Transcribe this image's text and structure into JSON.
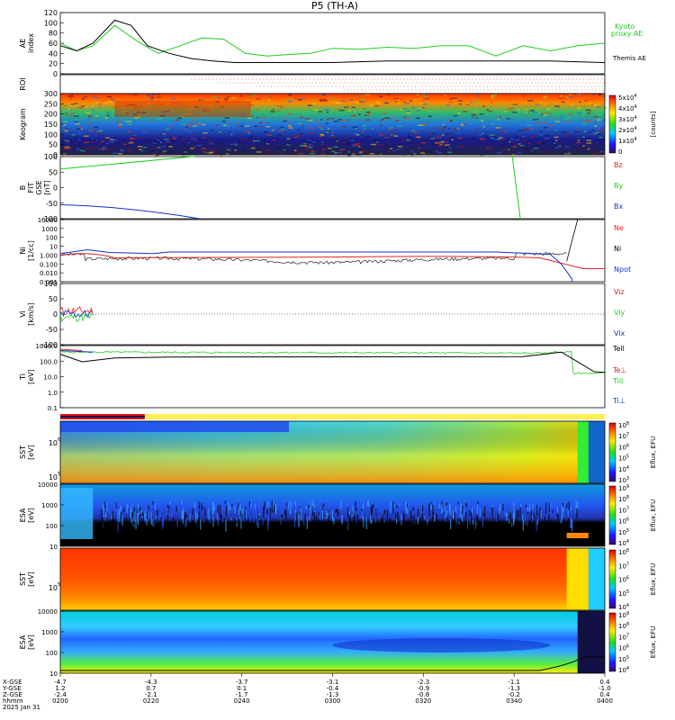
{
  "title": "P5 (TH-A)",
  "colors": {
    "green": "#22cc22",
    "red": "#dd2222",
    "blue": "#1133cc",
    "black": "#000000"
  },
  "chart_data": [
    {
      "id": "ae",
      "type": "line",
      "ylabel": "AE index",
      "ylim": [
        0,
        120
      ],
      "yticks": [
        "0",
        "20",
        "40",
        "60",
        "80",
        "100",
        "120"
      ],
      "legend": [
        "Kyoto",
        "proxy AE",
        "Themis AE"
      ],
      "series": [
        {
          "name": "Kyoto proxy AE",
          "color": "#22cc22",
          "x": [
            0,
            0.03,
            0.06,
            0.1,
            0.14,
            0.18,
            0.22,
            0.26,
            0.3,
            0.34,
            0.38,
            0.42,
            0.46,
            0.5,
            0.55,
            0.6,
            0.65,
            0.7,
            0.75,
            0.8,
            0.85,
            0.9,
            0.95,
            1.0
          ],
          "values": [
            60,
            45,
            55,
            95,
            65,
            40,
            55,
            70,
            68,
            40,
            35,
            38,
            40,
            50,
            48,
            52,
            50,
            55,
            55,
            35,
            55,
            45,
            55,
            60
          ]
        },
        {
          "name": "Themis AE",
          "color": "#000000",
          "x": [
            0,
            0.03,
            0.06,
            0.1,
            0.13,
            0.16,
            0.2,
            0.24,
            0.28,
            0.32,
            0.4,
            0.5,
            0.6,
            0.7,
            0.8,
            0.9,
            1.0
          ],
          "values": [
            55,
            45,
            60,
            105,
            95,
            55,
            40,
            30,
            25,
            22,
            22,
            22,
            25,
            25,
            25,
            25,
            22
          ]
        }
      ]
    },
    {
      "id": "roi",
      "type": "scatter",
      "ylabel": "ROI",
      "note": "dotted flags"
    },
    {
      "id": "keogram",
      "type": "heatmap",
      "ylabel": "Keogram",
      "ylim": [
        0,
        300
      ],
      "yticks": [
        "300",
        "250",
        "200",
        "150",
        "100",
        "50",
        "0"
      ],
      "colorbar_label": "[counts]",
      "colorbar_ticks": [
        "5x10^4",
        "4x10^4",
        "3x10^4",
        "2x10^4",
        "1x10^4",
        "0"
      ]
    },
    {
      "id": "bfield",
      "type": "line",
      "ylabel": "B FIT GSE [nT]",
      "ylim": [
        -100,
        100
      ],
      "yticks": [
        "100",
        "50",
        "0",
        "-50",
        "-100"
      ],
      "series": [
        {
          "name": "Bz",
          "color": "#dd2222"
        },
        {
          "name": "By",
          "color": "#22cc22"
        },
        {
          "name": "Bx",
          "color": "#1133cc"
        }
      ]
    },
    {
      "id": "density",
      "type": "line",
      "ylabel": "Ni [1/cc]",
      "yscale": "log",
      "ylim": [
        0.001,
        10000
      ],
      "yticks": [
        "10000",
        "1000",
        "100",
        "10",
        "1.000",
        "0.100",
        "0.010",
        "0.001"
      ],
      "series": [
        {
          "name": "Ne",
          "color": "#dd2222"
        },
        {
          "name": "Ni",
          "color": "#000000"
        },
        {
          "name": "Npot",
          "color": "#1133cc"
        }
      ]
    },
    {
      "id": "velocity",
      "type": "line",
      "ylabel": "Vi [km/s]",
      "ylim": [
        -100,
        100
      ],
      "yticks": [
        "100",
        "50",
        "0",
        "-50",
        "-100"
      ],
      "series": [
        {
          "name": "Viz",
          "color": "#dd2222"
        },
        {
          "name": "Viy",
          "color": "#22cc22"
        },
        {
          "name": "Vix",
          "color": "#1133cc"
        }
      ]
    },
    {
      "id": "temperature",
      "type": "line",
      "ylabel": "Ti [eV]",
      "yscale": "log",
      "ylim": [
        0.1,
        10000
      ],
      "yticks": [
        "1000.0",
        "100.0",
        "10.0",
        "1.0",
        "0.1"
      ],
      "series": [
        {
          "name": "Tell",
          "color": "#000000"
        },
        {
          "name": "Te⊥",
          "color": "#dd2222"
        },
        {
          "name": "Till",
          "color": "#22cc22"
        },
        {
          "name": "Ti⊥",
          "color": "#1133cc"
        }
      ]
    },
    {
      "id": "sst_e",
      "type": "heatmap",
      "ylabel": "SST [eV]",
      "yticks": [
        "10^6",
        "10^5"
      ],
      "colorbar_label": "Eflux, EFU",
      "colorbar_ticks": [
        "10^8",
        "10^7",
        "10^6",
        "10^5",
        "10^4",
        "10^3"
      ]
    },
    {
      "id": "esa_e",
      "type": "heatmap",
      "ylabel": "ESA [eV]",
      "yticks": [
        "10000",
        "1000",
        "100",
        "10"
      ],
      "colorbar_label": "Eflux, EFU",
      "colorbar_ticks": [
        "10^9",
        "10^8",
        "10^7",
        "10^6",
        "10^5",
        "10^4"
      ]
    },
    {
      "id": "sst_i",
      "type": "heatmap",
      "ylabel": "SST [eV]",
      "yticks": [
        "10^5"
      ],
      "colorbar_label": "Eflux, EFU",
      "colorbar_ticks": [
        "10^8",
        "10^7",
        "10^6",
        "10^5",
        "10^4"
      ]
    },
    {
      "id": "esa_i",
      "type": "heatmap",
      "ylabel": "ESA [eV]",
      "yticks": [
        "10000",
        "1000",
        "100",
        "10"
      ],
      "colorbar_label": "Eflux, EFU",
      "colorbar_ticks": [
        "10^9",
        "10^8",
        "10^7",
        "10^6",
        "10^5",
        "10^4"
      ]
    }
  ],
  "x_axis": {
    "row_labels": [
      "X-GSE",
      "Y-GSE",
      "Z-GSE",
      "hhmm",
      "2025 Jan 31"
    ],
    "ticks": [
      {
        "x": "-4.7",
        "y": "1.2",
        "z": "-2.4",
        "t": "0200"
      },
      {
        "x": "-4.3",
        "y": "0.7",
        "z": "-2.1",
        "t": "0220"
      },
      {
        "x": "-3.7",
        "y": "0.1",
        "z": "-1.7",
        "t": "0240"
      },
      {
        "x": "-3.1",
        "y": "-0.4",
        "z": "-1.3",
        "t": "0300"
      },
      {
        "x": "-2.3",
        "y": "-0.9",
        "z": "-0.8",
        "t": "0320"
      },
      {
        "x": "-1.1",
        "y": "-1.3",
        "z": "-0.2",
        "t": "0340"
      },
      {
        "x": "0.4",
        "y": "-1.0",
        "z": "0.4",
        "t": "0400"
      }
    ]
  }
}
